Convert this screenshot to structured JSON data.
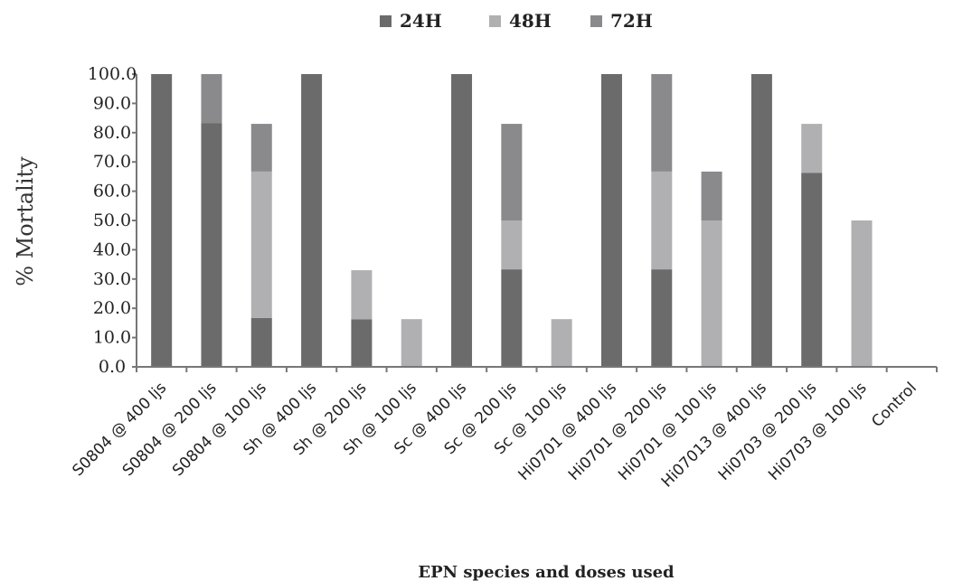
{
  "chart_data": {
    "type": "bar",
    "stacked": true,
    "title": "",
    "xlabel": "EPN species and doses used",
    "ylabel": "% Mortality",
    "ylim": [
      0,
      100
    ],
    "yticks": [
      "0.0",
      "10.0",
      "20.0",
      "30.0",
      "40.0",
      "50.0",
      "60.0",
      "70.0",
      "80.0",
      "90.0",
      "100.0"
    ],
    "legend_position": "top",
    "grid": false,
    "categories": [
      "S0804 @ 400 ljs",
      "S0804 @ 200 ljs",
      "S0804 @ 100 ljs",
      "Sh @ 400 ljs",
      "Sh @ 200 ljs",
      "Sh @ 100 ljs",
      "Sc @ 400 ljs",
      "Sc @ 200 ljs",
      "Sc @ 100 ljs",
      "Hi0701 @ 400 ljs",
      "Hi0701 @ 200 ljs",
      "Hi0701 @ 100 ljs",
      "Hi07013 @ 400 ljs",
      "Hi0703 @ 200 ljs",
      "Hi0703 @ 100 ljs",
      "Control"
    ],
    "series": [
      {
        "name": "24H",
        "color": "#6b6b6b",
        "values": [
          100,
          83.3,
          16.7,
          100,
          16.2,
          0,
          100,
          33.3,
          0,
          100,
          33.3,
          0,
          100,
          66.3,
          0,
          0
        ]
      },
      {
        "name": "48H",
        "color": "#b0b0b2",
        "values": [
          0,
          0,
          50.0,
          0,
          16.8,
          16.3,
          0,
          16.7,
          16.3,
          0,
          33.4,
          50.0,
          0,
          16.7,
          50.0,
          0
        ]
      },
      {
        "name": "72H",
        "color": "#8a8a8d",
        "values": [
          0,
          16.7,
          16.3,
          0,
          0,
          0,
          0,
          33.0,
          0,
          0,
          33.3,
          16.7,
          0,
          0,
          0,
          0
        ]
      }
    ]
  }
}
